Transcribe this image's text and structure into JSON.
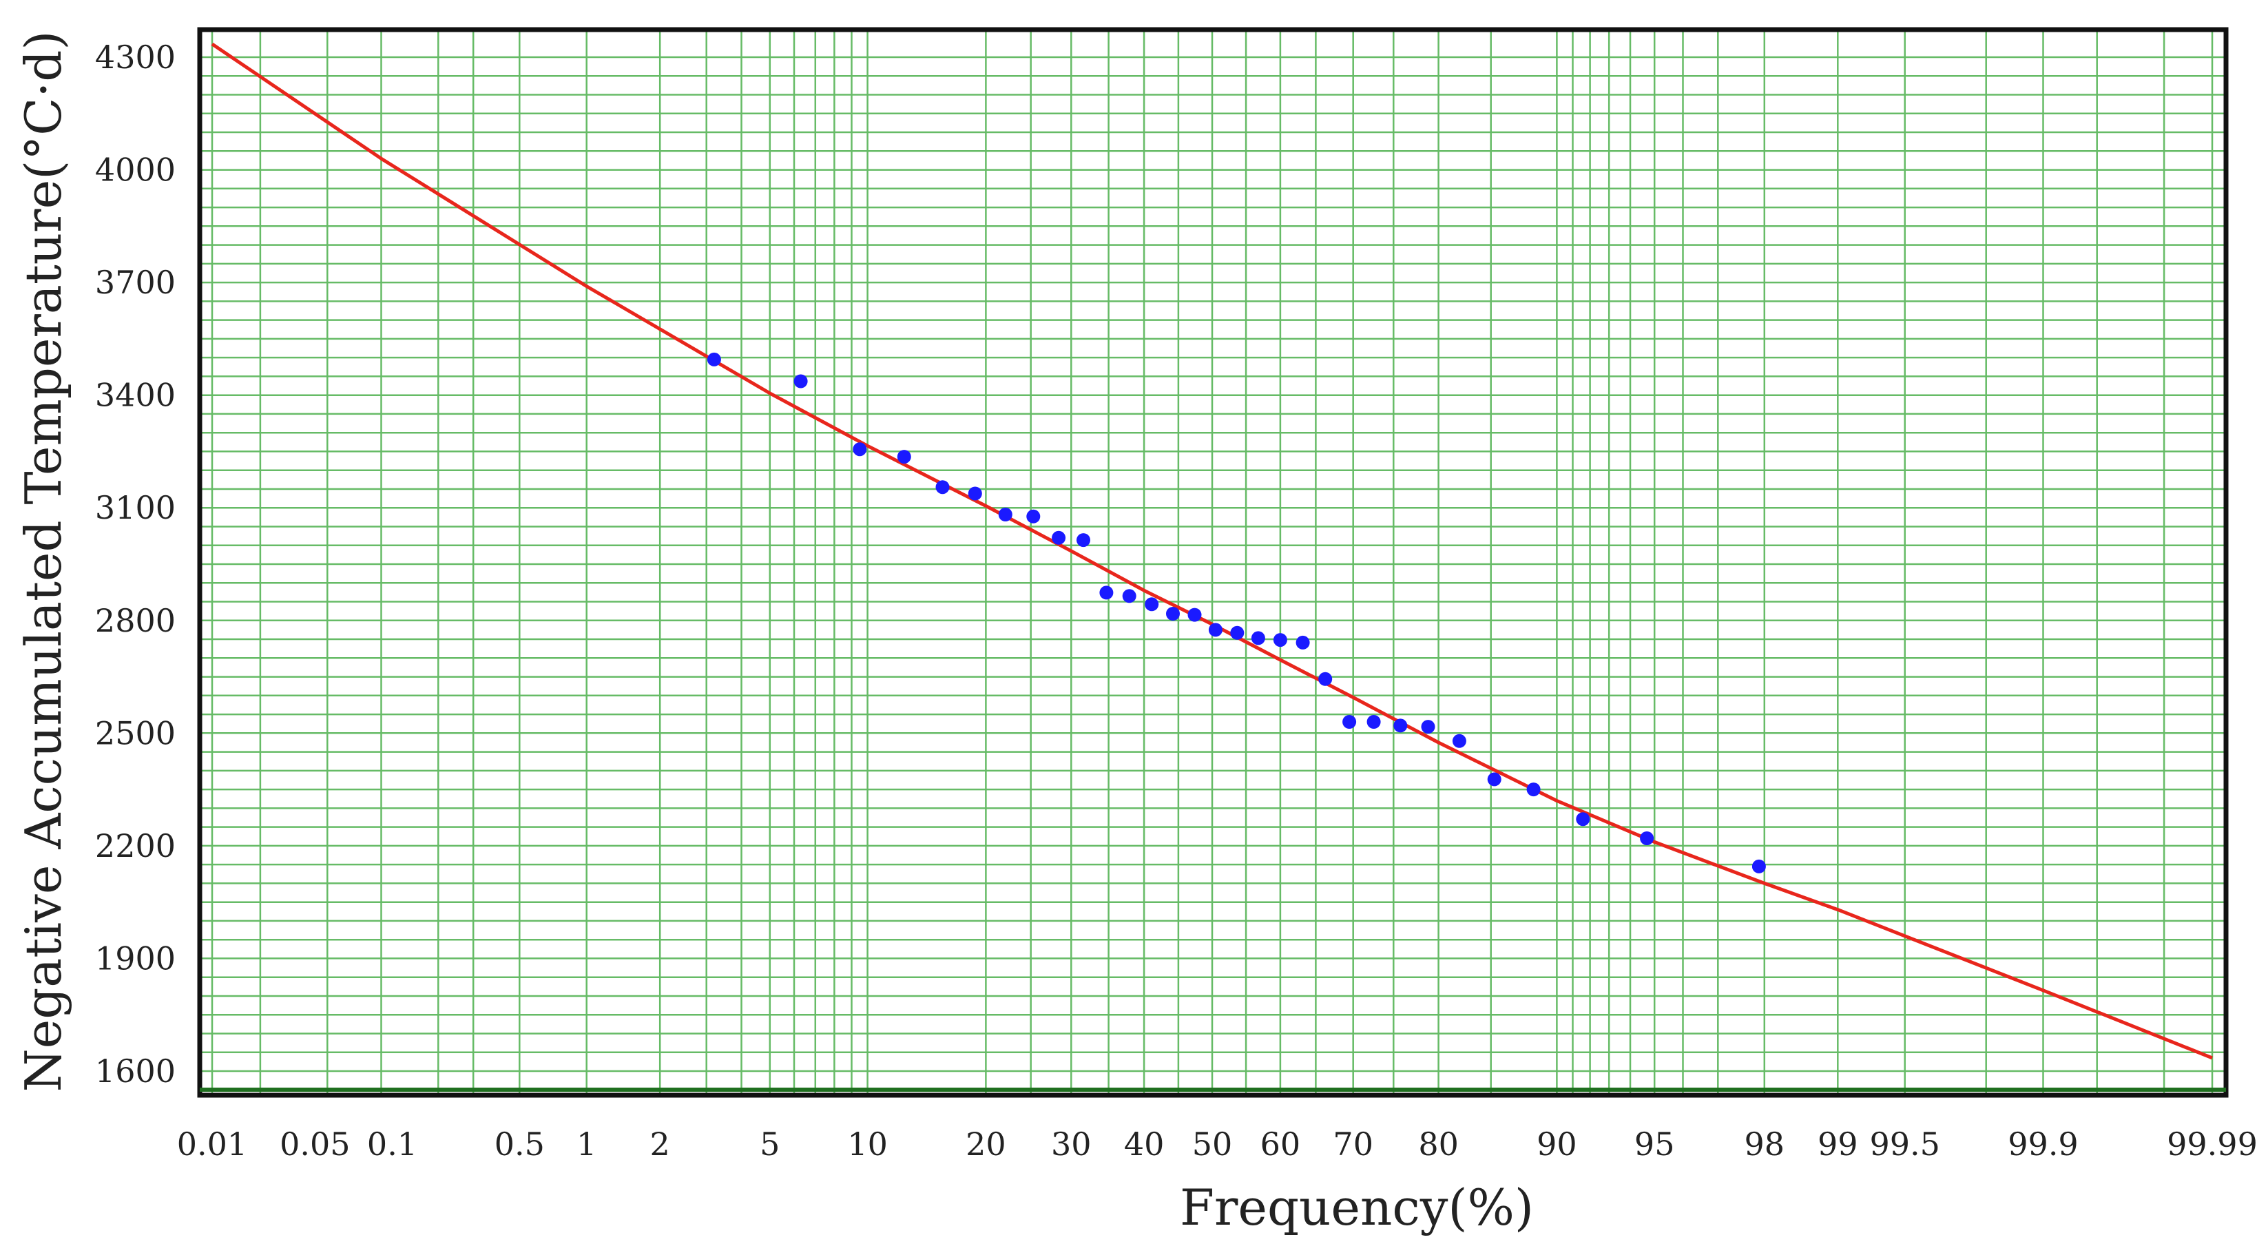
{
  "chart_data": {
    "type": "scatter",
    "title": "",
    "xlabel": "Frequency(%)",
    "ylabel": "Negative Accumulated Temperature(°C·d)",
    "x_scale": "probability",
    "xlim": [
      0.01,
      99.99
    ],
    "ylim": [
      1600,
      4300
    ],
    "grid": true,
    "legend": "none",
    "x_ticks": [
      {
        "value": 0.01,
        "label": "0.01"
      },
      {
        "value": 0.05,
        "label": "0.05"
      },
      {
        "value": 0.1,
        "label": "0.1"
      },
      {
        "value": 0.5,
        "label": "0.5"
      },
      {
        "value": 1,
        "label": "1"
      },
      {
        "value": 2,
        "label": "2"
      },
      {
        "value": 5,
        "label": "5"
      },
      {
        "value": 10,
        "label": "10"
      },
      {
        "value": 20,
        "label": "20"
      },
      {
        "value": 30,
        "label": "30"
      },
      {
        "value": 40,
        "label": "40"
      },
      {
        "value": 50,
        "label": "50"
      },
      {
        "value": 60,
        "label": "60"
      },
      {
        "value": 70,
        "label": "70"
      },
      {
        "value": 80,
        "label": "80"
      },
      {
        "value": 90,
        "label": "90"
      },
      {
        "value": 95,
        "label": "95"
      },
      {
        "value": 98,
        "label": "98"
      },
      {
        "value": 99,
        "label": "99"
      },
      {
        "value": 99.5,
        "label": "99.5"
      },
      {
        "value": 99.9,
        "label": "99.9"
      },
      {
        "value": 99.99,
        "label": "99.99"
      }
    ],
    "y_ticks": [
      {
        "value": 1600,
        "label": "1600"
      },
      {
        "value": 1900,
        "label": "1900"
      },
      {
        "value": 2200,
        "label": "2200"
      },
      {
        "value": 2500,
        "label": "2500"
      },
      {
        "value": 2800,
        "label": "2800"
      },
      {
        "value": 3100,
        "label": "3100"
      },
      {
        "value": 3400,
        "label": "3400"
      },
      {
        "value": 3700,
        "label": "3700"
      },
      {
        "value": 4000,
        "label": "4000"
      },
      {
        "value": 4300,
        "label": "4300"
      }
    ],
    "x_minor_grid": [
      0.02,
      0.2,
      0.3,
      3,
      4,
      6,
      7,
      8,
      9,
      25,
      35,
      45,
      55,
      65,
      75,
      85,
      91,
      92,
      93,
      94,
      96,
      97,
      99.8,
      99.95,
      99.98
    ],
    "points": [
      {
        "x": 3.2,
        "y": 3495
      },
      {
        "x": 6.3,
        "y": 3437
      },
      {
        "x": 9.5,
        "y": 3256
      },
      {
        "x": 12.6,
        "y": 3236
      },
      {
        "x": 15.8,
        "y": 3155
      },
      {
        "x": 18.9,
        "y": 3138
      },
      {
        "x": 22.1,
        "y": 3082
      },
      {
        "x": 25.3,
        "y": 3077
      },
      {
        "x": 28.4,
        "y": 3020
      },
      {
        "x": 31.6,
        "y": 3014
      },
      {
        "x": 34.7,
        "y": 2874
      },
      {
        "x": 37.9,
        "y": 2865
      },
      {
        "x": 41.1,
        "y": 2843
      },
      {
        "x": 44.2,
        "y": 2818
      },
      {
        "x": 47.4,
        "y": 2815
      },
      {
        "x": 50.5,
        "y": 2775
      },
      {
        "x": 53.7,
        "y": 2767
      },
      {
        "x": 56.8,
        "y": 2753
      },
      {
        "x": 60.0,
        "y": 2748
      },
      {
        "x": 63.2,
        "y": 2741
      },
      {
        "x": 66.3,
        "y": 2644
      },
      {
        "x": 69.5,
        "y": 2530
      },
      {
        "x": 72.6,
        "y": 2530
      },
      {
        "x": 75.8,
        "y": 2520
      },
      {
        "x": 78.9,
        "y": 2517
      },
      {
        "x": 82.1,
        "y": 2479
      },
      {
        "x": 85.3,
        "y": 2377
      },
      {
        "x": 88.4,
        "y": 2350
      },
      {
        "x": 91.6,
        "y": 2271
      },
      {
        "x": 94.7,
        "y": 2220
      },
      {
        "x": 97.9,
        "y": 2145
      }
    ],
    "fit_line": {
      "color": "#e8261c",
      "points": [
        {
          "x": 0.01,
          "y": 4335
        },
        {
          "x": 0.1,
          "y": 4030
        },
        {
          "x": 1,
          "y": 3690
        },
        {
          "x": 5,
          "y": 3405
        },
        {
          "x": 10,
          "y": 3265
        },
        {
          "x": 20,
          "y": 3105
        },
        {
          "x": 30,
          "y": 2985
        },
        {
          "x": 40,
          "y": 2880
        },
        {
          "x": 50,
          "y": 2790
        },
        {
          "x": 60,
          "y": 2695
        },
        {
          "x": 70,
          "y": 2595
        },
        {
          "x": 80,
          "y": 2475
        },
        {
          "x": 90,
          "y": 2320
        },
        {
          "x": 95,
          "y": 2210
        },
        {
          "x": 98,
          "y": 2100
        },
        {
          "x": 99,
          "y": 2030
        },
        {
          "x": 99.9,
          "y": 1815
        },
        {
          "x": 99.99,
          "y": 1635
        }
      ]
    },
    "colors": {
      "points": "#1a1aff",
      "fit_line": "#e8261c",
      "grid": "#66bb66",
      "frame": "#111111",
      "plot_background": "#ffffff"
    }
  }
}
